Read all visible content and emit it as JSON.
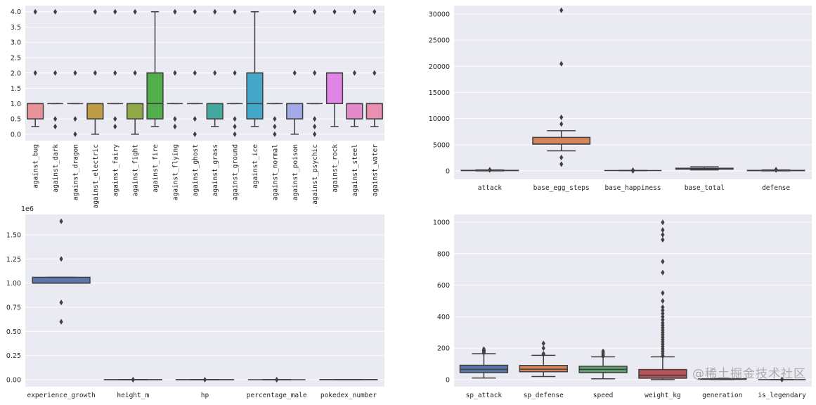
{
  "chart_data": [
    {
      "type": "box",
      "ylim": [
        -0.21,
        4.2
      ],
      "yticks": [
        0.0,
        0.5,
        1.0,
        1.5,
        2.0,
        2.5,
        3.0,
        3.5,
        4.0
      ],
      "ytick_labels": [
        "0.0",
        "0.5",
        "1.0",
        "1.5",
        "2.0",
        "2.5",
        "3.0",
        "3.5",
        "4.0"
      ],
      "offset_label": "",
      "grid": true,
      "categories": [
        "against_bug",
        "against_dark",
        "against_dragon",
        "against_electric",
        "against_fairy",
        "against_fight",
        "against_fire",
        "against_flying",
        "against_ghost",
        "against_grass",
        "against_ground",
        "against_ice",
        "against_normal",
        "against_poison",
        "against_psychic",
        "against_rock",
        "against_steel",
        "against_water"
      ],
      "colors": [
        "#e8929a",
        "#dc9a6a",
        "#c99f55",
        "#bf9d47",
        "#a8a548",
        "#90aa48",
        "#52ad4c",
        "#4fab7f",
        "#4ea995",
        "#45a89f",
        "#47a6b2",
        "#45a8c8",
        "#6ea4d6",
        "#a2a9e6",
        "#b8a0e8",
        "#e085e3",
        "#e489cc",
        "#e98fb0"
      ],
      "boxes": [
        {
          "q1": 0.5,
          "med": 1,
          "q3": 1,
          "lo": 0.25,
          "hi": 1,
          "fliers": [
            2,
            4
          ]
        },
        {
          "q1": 1,
          "med": 1,
          "q3": 1,
          "lo": 1,
          "hi": 1,
          "fliers": [
            0.25,
            0.5,
            2,
            4
          ]
        },
        {
          "q1": 1,
          "med": 1,
          "q3": 1,
          "lo": 1,
          "hi": 1,
          "fliers": [
            0,
            0.5,
            2
          ]
        },
        {
          "q1": 0.5,
          "med": 1,
          "q3": 1,
          "lo": 0,
          "hi": 1,
          "fliers": [
            2,
            4
          ]
        },
        {
          "q1": 1,
          "med": 1,
          "q3": 1,
          "lo": 1,
          "hi": 1,
          "fliers": [
            0.25,
            0.5,
            2,
            4
          ]
        },
        {
          "q1": 0.5,
          "med": 1,
          "q3": 1,
          "lo": 0,
          "hi": 1,
          "fliers": [
            2,
            4
          ]
        },
        {
          "q1": 0.5,
          "med": 1,
          "q3": 2,
          "lo": 0.25,
          "hi": 4,
          "fliers": []
        },
        {
          "q1": 1,
          "med": 1,
          "q3": 1,
          "lo": 1,
          "hi": 1,
          "fliers": [
            0.25,
            0.5,
            2,
            4
          ]
        },
        {
          "q1": 1,
          "med": 1,
          "q3": 1,
          "lo": 1,
          "hi": 1,
          "fliers": [
            0,
            0.5,
            2,
            4
          ]
        },
        {
          "q1": 0.5,
          "med": 1,
          "q3": 1,
          "lo": 0.25,
          "hi": 1,
          "fliers": [
            2,
            4
          ]
        },
        {
          "q1": 1,
          "med": 1,
          "q3": 1,
          "lo": 1,
          "hi": 1,
          "fliers": [
            0,
            0.25,
            0.5,
            2,
            4
          ]
        },
        {
          "q1": 0.5,
          "med": 1,
          "q3": 2,
          "lo": 0.25,
          "hi": 4,
          "fliers": []
        },
        {
          "q1": 1,
          "med": 1,
          "q3": 1,
          "lo": 1,
          "hi": 1,
          "fliers": [
            0,
            0.25,
            0.5
          ]
        },
        {
          "q1": 0.5,
          "med": 1,
          "q3": 1,
          "lo": 0,
          "hi": 1,
          "fliers": [
            2,
            4
          ]
        },
        {
          "q1": 1,
          "med": 1,
          "q3": 1,
          "lo": 1,
          "hi": 1,
          "fliers": [
            0,
            0.25,
            0.5,
            2,
            4
          ]
        },
        {
          "q1": 1,
          "med": 2,
          "q3": 2,
          "lo": 0.25,
          "hi": 2,
          "fliers": [
            4
          ]
        },
        {
          "q1": 0.5,
          "med": 1,
          "q3": 1,
          "lo": 0.25,
          "hi": 1,
          "fliers": [
            2,
            4
          ]
        },
        {
          "q1": 0.5,
          "med": 1,
          "q3": 1,
          "lo": 0.25,
          "hi": 1,
          "fliers": [
            2,
            4
          ]
        }
      ]
    },
    {
      "type": "box",
      "ylim": [
        -1615,
        31610
      ],
      "yticks": [
        0,
        5000,
        10000,
        15000,
        20000,
        25000,
        30000
      ],
      "ytick_labels": [
        "0",
        "5000",
        "10000",
        "15000",
        "20000",
        "25000",
        "30000"
      ],
      "offset_label": "",
      "grid": true,
      "categories": [
        "attack",
        "base_egg_steps",
        "base_happiness",
        "base_total",
        "defense"
      ],
      "colors": [
        "#5a76ad",
        "#d5865a",
        "#5fa06d",
        "#b85458",
        "#7b6fa9"
      ],
      "boxes": [
        {
          "q1": 55,
          "med": 75,
          "q3": 100,
          "lo": 5,
          "hi": 165,
          "fliers": [
            170,
            180,
            185
          ]
        },
        {
          "q1": 5120,
          "med": 5120,
          "q3": 6400,
          "lo": 3840,
          "hi": 7680,
          "fliers": [
            1280,
            2560,
            8960,
            10240,
            20480,
            30720
          ]
        },
        {
          "q1": 70,
          "med": 70,
          "q3": 70,
          "lo": 70,
          "hi": 70,
          "fliers": [
            0,
            35,
            100,
            140
          ]
        },
        {
          "q1": 320,
          "med": 435,
          "q3": 505,
          "lo": 180,
          "hi": 780,
          "fliers": []
        },
        {
          "q1": 50,
          "med": 70,
          "q3": 90,
          "lo": 5,
          "hi": 160,
          "fliers": [
            170,
            200,
            230
          ]
        }
      ]
    },
    {
      "type": "box",
      "ylim": [
        -73000,
        1711000
      ],
      "yticks": [
        0,
        250000,
        500000,
        750000,
        1000000,
        1250000,
        1500000
      ],
      "ytick_labels": [
        "0.00",
        "0.25",
        "0.50",
        "0.75",
        "1.00",
        "1.25",
        "1.50"
      ],
      "offset_label": "1e6",
      "grid": true,
      "categories": [
        "experience_growth",
        "height_m",
        "hp",
        "percentage_male",
        "pokedex_number"
      ],
      "colors": [
        "#5a76ad",
        "#d5865a",
        "#5fa06d",
        "#b85458",
        "#7b6fa9"
      ],
      "boxes": [
        {
          "q1": 1000000,
          "med": 1000000,
          "q3": 1059860,
          "lo": 1000000,
          "hi": 1059860,
          "fliers": [
            600000,
            800000,
            1250000,
            1640000
          ]
        },
        {
          "q1": 1,
          "med": 1,
          "q3": 2,
          "lo": 0,
          "hi": 3,
          "fliers": [
            5,
            10
          ]
        },
        {
          "q1": 50,
          "med": 65,
          "q3": 80,
          "lo": 1,
          "hi": 125,
          "fliers": [
            200
          ]
        },
        {
          "q1": 50,
          "med": 50,
          "q3": 50,
          "lo": 50,
          "hi": 50,
          "fliers": [
            0,
            100
          ]
        },
        {
          "q1": 200,
          "med": 401,
          "q3": 601,
          "lo": 1,
          "hi": 801,
          "fliers": []
        }
      ]
    },
    {
      "type": "box",
      "ylim": [
        -45,
        1049
      ],
      "yticks": [
        0,
        200,
        400,
        600,
        800,
        1000
      ],
      "ytick_labels": [
        "0",
        "200",
        "400",
        "600",
        "800",
        "1000"
      ],
      "offset_label": "",
      "grid": true,
      "categories": [
        "sp_attack",
        "sp_defense",
        "speed",
        "weight_kg",
        "generation",
        "is_legendary"
      ],
      "colors": [
        "#5a76ad",
        "#d5865a",
        "#5fa06d",
        "#b85458",
        "#7b6fa9",
        "#8d7866"
      ],
      "boxes": [
        {
          "q1": 45,
          "med": 65,
          "q3": 91,
          "lo": 10,
          "hi": 165,
          "fliers": [
            170,
            175,
            180,
            185,
            194
          ]
        },
        {
          "q1": 50,
          "med": 66,
          "q3": 90,
          "lo": 20,
          "hi": 154,
          "fliers": [
            160,
            165,
            200,
            230
          ]
        },
        {
          "q1": 45,
          "med": 65,
          "q3": 85,
          "lo": 5,
          "hi": 145,
          "fliers": [
            150,
            160,
            170,
            180
          ]
        },
        {
          "q1": 9,
          "med": 27,
          "q3": 64,
          "lo": 0.1,
          "hi": 145,
          "fliers": [
            150,
            165,
            180,
            195,
            210,
            225,
            240,
            255,
            270,
            285,
            300,
            315,
            330,
            345,
            360,
            380,
            400,
            420,
            440,
            460,
            500,
            550,
            680,
            750,
            888,
            920,
            950,
            999
          ]
        },
        {
          "q1": 2,
          "med": 4,
          "q3": 5,
          "lo": 1,
          "hi": 7,
          "fliers": []
        },
        {
          "q1": 0,
          "med": 0,
          "q3": 0,
          "lo": 0,
          "hi": 0,
          "fliers": [
            1,
            1,
            1
          ]
        }
      ]
    }
  ],
  "watermark": "@稀土掘金技术社区"
}
